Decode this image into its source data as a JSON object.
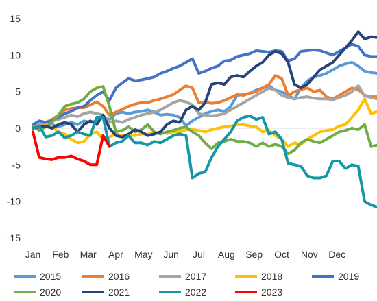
{
  "chart_data": {
    "type": "line",
    "title": "",
    "xlabel": "",
    "ylabel": "",
    "ylim": [
      -15,
      15
    ],
    "yticks": [
      15,
      10,
      5,
      0,
      -5,
      -10,
      -15
    ],
    "xticks": [
      "Jan",
      "Feb",
      "Mar",
      "Apr",
      "May",
      "Jun",
      "Jul",
      "Aug",
      "Sep",
      "Oct",
      "Nov",
      "Dec"
    ],
    "grid": false,
    "legend": "bottom",
    "points_per_month": 4.333,
    "series": [
      {
        "name": "2015",
        "color": "#5B9BD5",
        "values": [
          0.5,
          0.0,
          0.3,
          0.5,
          0.2,
          0.5,
          0.8,
          0.5,
          1.0,
          0.8,
          1.0,
          1.5,
          1.2,
          2.0,
          2.2,
          2.0,
          2.2,
          2.3,
          2.5,
          2.2,
          1.8,
          1.9,
          1.8,
          1.5,
          0.3,
          1.0,
          1.5,
          2.0,
          2.3,
          2.5,
          2.3,
          3.0,
          4.5,
          4.6,
          4.8,
          5.2,
          5.5,
          5.8,
          5.2,
          5.0,
          4.5,
          4.0,
          5.5,
          6.5,
          7.0,
          7.2,
          7.5,
          8.0,
          8.5,
          8.8,
          9.0,
          8.5,
          7.8,
          7.6,
          7.5
        ]
      },
      {
        "name": "2016",
        "color": "#ED7D31",
        "values": [
          0.5,
          0.2,
          0.8,
          1.2,
          1.8,
          2.5,
          2.7,
          2.8,
          2.8,
          3.2,
          3.6,
          3.0,
          1.8,
          2.2,
          2.6,
          3.0,
          3.3,
          3.5,
          3.5,
          3.8,
          4.0,
          4.3,
          4.6,
          5.2,
          5.8,
          5.5,
          3.5,
          3.6,
          3.4,
          3.5,
          3.8,
          4.2,
          4.6,
          4.5,
          4.8,
          5.0,
          5.5,
          6.0,
          7.2,
          6.8,
          4.5,
          5.0,
          5.3,
          5.5,
          5.0,
          5.2,
          4.3,
          4.0,
          4.5,
          5.0,
          5.5,
          5.3,
          4.5,
          4.3,
          4.3
        ]
      },
      {
        "name": "2017",
        "color": "#A5A5A5",
        "values": [
          0.3,
          0.5,
          0.8,
          1.0,
          1.2,
          1.5,
          1.8,
          1.6,
          2.0,
          2.2,
          2.0,
          1.8,
          0.8,
          1.0,
          0.8,
          1.2,
          1.5,
          1.8,
          2.0,
          2.2,
          2.5,
          3.0,
          3.5,
          3.8,
          3.6,
          3.2,
          2.0,
          1.8,
          1.7,
          1.8,
          2.0,
          2.5,
          3.0,
          3.5,
          4.0,
          4.5,
          5.0,
          5.5,
          5.2,
          4.5,
          4.2,
          4.0,
          4.2,
          4.3,
          4.1,
          4.0,
          4.0,
          3.9,
          4.2,
          4.5,
          5.0,
          5.8,
          4.4,
          4.2,
          4.0
        ]
      },
      {
        "name": "2018",
        "color": "#FFC000",
        "values": [
          0.2,
          0.0,
          0.4,
          0.2,
          -0.5,
          -0.8,
          -1.5,
          -2.0,
          -1.8,
          -0.8,
          -0.5,
          -1.5,
          -1.2,
          -0.8,
          -1.0,
          -0.9,
          -1.0,
          -0.8,
          -0.8,
          -0.7,
          -0.5,
          -0.7,
          -0.5,
          -0.5,
          -0.2,
          -0.2,
          -0.3,
          -0.5,
          -0.2,
          0.0,
          0.2,
          0.3,
          0.5,
          0.5,
          0.3,
          0.2,
          -0.5,
          -0.3,
          -1.0,
          -1.5,
          -2.5,
          -2.0,
          -2.2,
          -1.5,
          -1.0,
          -0.5,
          -0.3,
          -0.2,
          0.3,
          0.5,
          1.5,
          2.5,
          4.0,
          2.0,
          2.3
        ]
      },
      {
        "name": "2019",
        "color": "#4472C4",
        "values": [
          0.5,
          1.0,
          0.8,
          1.0,
          1.5,
          2.0,
          2.3,
          2.8,
          3.0,
          3.8,
          4.5,
          5.0,
          3.8,
          5.5,
          6.2,
          6.8,
          6.5,
          6.6,
          6.8,
          7.0,
          7.5,
          7.8,
          8.2,
          8.5,
          9.0,
          9.5,
          7.5,
          7.8,
          8.2,
          8.5,
          9.2,
          9.3,
          9.8,
          10.0,
          10.2,
          10.6,
          10.5,
          10.4,
          10.6,
          10.5,
          9.2,
          9.5,
          10.5,
          10.6,
          10.7,
          10.6,
          10.3,
          10.0,
          10.5,
          11.0,
          11.5,
          11.2,
          10.0,
          9.8,
          9.8
        ]
      },
      {
        "name": "2020",
        "color": "#70AD47",
        "values": [
          0.3,
          -0.3,
          0.2,
          0.8,
          1.8,
          3.0,
          3.3,
          3.5,
          4.0,
          5.0,
          5.5,
          5.7,
          3.0,
          -0.5,
          -0.3,
          0.2,
          -0.5,
          -0.2,
          0.5,
          -0.5,
          -0.8,
          -0.5,
          -0.3,
          0.0,
          0.2,
          -0.5,
          -1.0,
          -2.0,
          -2.8,
          -2.0,
          -1.8,
          -1.5,
          -1.8,
          -1.8,
          -2.0,
          -2.5,
          -2.0,
          -2.5,
          -2.2,
          -2.5,
          -3.5,
          -3.0,
          -2.0,
          -1.5,
          -1.8,
          -2.0,
          -1.5,
          -1.0,
          -0.5,
          -0.3,
          0.0,
          -0.2,
          0.5,
          -2.5,
          -2.3
        ]
      },
      {
        "name": "2021",
        "color": "#264478",
        "values": [
          0.0,
          0.2,
          0.3,
          0.0,
          0.5,
          0.8,
          0.5,
          -0.5,
          0.5,
          1.0,
          0.5,
          1.8,
          0.0,
          -1.0,
          -1.2,
          -0.8,
          -0.2,
          -0.5,
          -1.0,
          -0.8,
          -0.5,
          0.5,
          1.0,
          0.8,
          2.5,
          3.0,
          2.5,
          3.5,
          6.0,
          6.2,
          6.0,
          7.0,
          7.2,
          7.0,
          7.8,
          8.5,
          9.0,
          10.0,
          10.5,
          10.2,
          9.0,
          6.0,
          5.5,
          6.0,
          7.0,
          8.0,
          8.5,
          9.0,
          10.0,
          11.0,
          12.0,
          13.2,
          12.2,
          12.5,
          12.4
        ]
      },
      {
        "name": "2022",
        "color": "#1597A5",
        "values": [
          0.0,
          0.3,
          -1.2,
          -1.0,
          -0.5,
          -1.3,
          -1.0,
          -0.5,
          -0.8,
          -1.0,
          1.5,
          1.5,
          -2.5,
          -2.0,
          -1.8,
          -1.0,
          -2.0,
          -2.0,
          -2.3,
          -1.8,
          -2.0,
          -1.5,
          -1.0,
          -0.8,
          -1.0,
          -6.8,
          -6.2,
          -6.0,
          -4.0,
          -2.5,
          -1.5,
          -0.5,
          1.0,
          1.5,
          1.7,
          1.2,
          1.5,
          -0.8,
          -0.5,
          -1.5,
          -4.8,
          -5.0,
          -5.2,
          -6.5,
          -6.8,
          -6.8,
          -6.5,
          -4.5,
          -4.5,
          -5.5,
          -5.0,
          -5.2,
          -10.0,
          -10.5,
          -10.8
        ]
      },
      {
        "name": "2023",
        "color": "#FF0000",
        "values": [
          -0.5,
          -4.0,
          -4.2,
          -4.3,
          -4.0,
          -4.0,
          -3.8,
          -4.2,
          -4.5,
          -5.0,
          -5.0,
          -1.0,
          -2.5
        ]
      }
    ]
  }
}
